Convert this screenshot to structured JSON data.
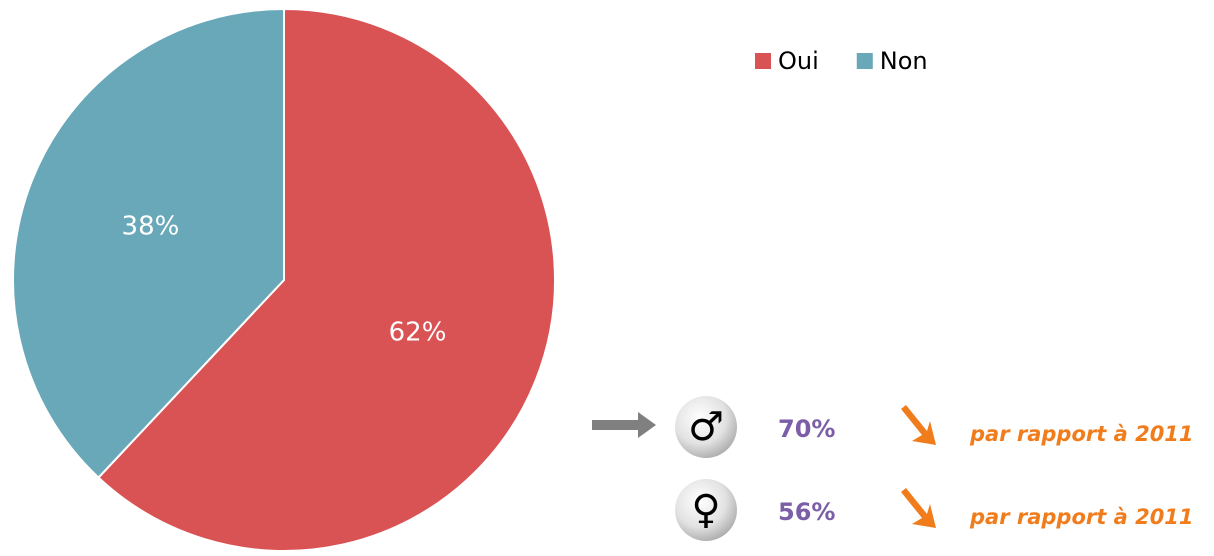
{
  "chart_data": {
    "type": "pie",
    "categories": [
      "Oui",
      "Non"
    ],
    "values": [
      62,
      38
    ],
    "value_labels": [
      "62%",
      "38%"
    ],
    "colors": [
      "#d95355",
      "#68a8b8"
    ],
    "legend": "top-right",
    "annotations": [
      {
        "symbol": "♂",
        "label": "70%",
        "note": "par rapport à 2011"
      },
      {
        "symbol": "♀",
        "label": "56%",
        "note": "par rapport à 2011"
      }
    ]
  }
}
